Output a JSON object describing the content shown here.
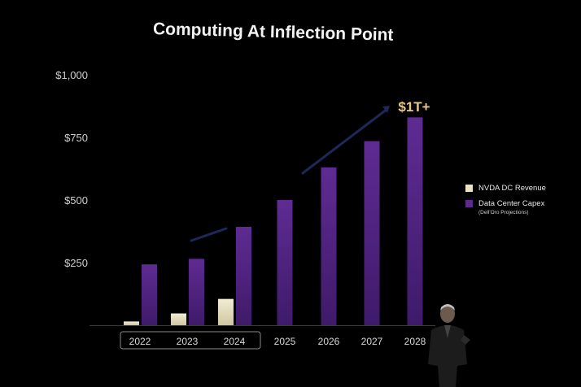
{
  "colors": {
    "background": "#000000",
    "nvda": "#e9e3c8",
    "capex": "#5b2a8c",
    "callout": "#e6c98a",
    "axis": "#cfcfcf"
  },
  "chart_data": {
    "type": "bar",
    "title": "Computing At Inflection Point",
    "categories": [
      "2022",
      "2023",
      "2024",
      "2025",
      "2026",
      "2027",
      "2028"
    ],
    "series": [
      {
        "name": "NVDA DC Revenue",
        "values": [
          15,
          47,
          105,
          null,
          null,
          null,
          null
        ]
      },
      {
        "name": "Data Center Capex",
        "values": [
          243,
          265,
          393,
          500,
          630,
          735,
          830
        ]
      }
    ],
    "legend_note": "(Dell'Oro Projections)",
    "yticks": [
      "$250",
      "$500",
      "$750",
      "$1,000"
    ],
    "ytick_values": [
      250,
      500,
      750,
      1000
    ],
    "ylim": [
      0,
      1000
    ],
    "annotation": "$1T+",
    "highlighted_categories": [
      "2022",
      "2023",
      "2024"
    ],
    "legend_position": "right",
    "grid": false
  }
}
